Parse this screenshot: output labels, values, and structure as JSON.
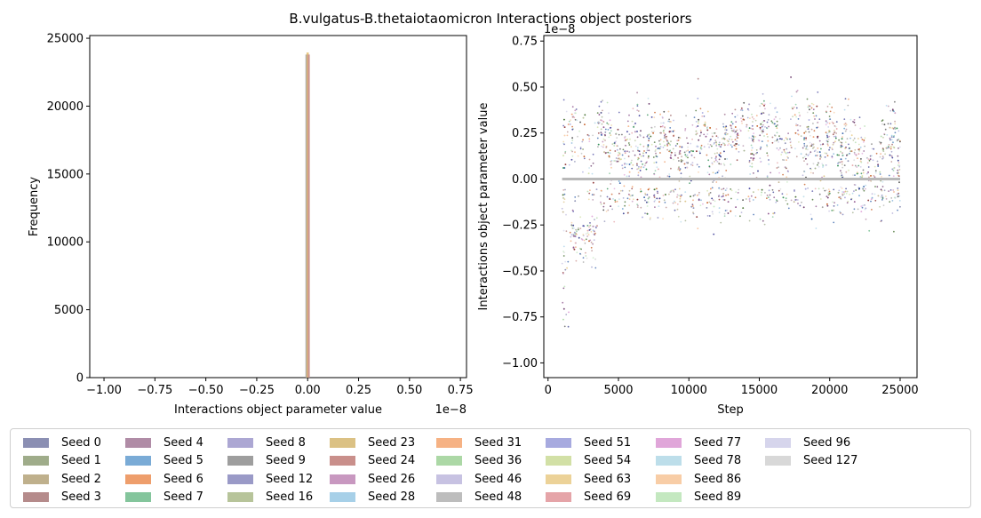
{
  "figure_title": "B.vulgatus-B.thetaiotaomicron Interactions object posteriors",
  "chart_data": [
    {
      "type": "bar",
      "subtype": "histogram",
      "xlabel": "Interactions object parameter value",
      "ylabel": "Frequency",
      "x_offset_label": "1e−8",
      "xlim": [
        -1.07,
        0.78
      ],
      "ylim": [
        0,
        25200
      ],
      "xticks": [
        "−1.00",
        "−0.75",
        "−0.50",
        "−0.25",
        "0.00",
        "0.25",
        "0.50",
        "0.75"
      ],
      "xtick_values": [
        -1.0,
        -0.75,
        -0.5,
        -0.25,
        0.0,
        0.25,
        0.5,
        0.75
      ],
      "yticks": [
        "0",
        "5000",
        "10000",
        "15000",
        "20000",
        "25000"
      ],
      "ytick_values": [
        0,
        5000,
        10000,
        15000,
        20000,
        25000
      ],
      "bins": [
        {
          "x": -0.005,
          "value": 23800,
          "color": "#9b9a9a"
        },
        {
          "x": 0.0,
          "value": 23950,
          "color": "#e5c06f"
        },
        {
          "x": 0.005,
          "value": 23800,
          "color": "#c98f8b"
        }
      ],
      "grid": false
    },
    {
      "type": "scatter",
      "xlabel": "Step",
      "ylabel": "Interactions object parameter value",
      "y_offset_label": "1e−8",
      "xlim": [
        -300,
        26200
      ],
      "ylim": [
        -1.08,
        0.78
      ],
      "xticks": [
        "0",
        "5000",
        "10000",
        "15000",
        "20000",
        "25000"
      ],
      "xtick_values": [
        0,
        5000,
        10000,
        15000,
        20000,
        25000
      ],
      "yticks": [
        "−1.00",
        "−0.75",
        "−0.50",
        "−0.25",
        "0.00",
        "0.25",
        "0.50",
        "0.75"
      ],
      "ytick_values": [
        -1.0,
        -0.75,
        -0.5,
        -0.25,
        0.0,
        0.25,
        0.5,
        0.75
      ],
      "zero_line": {
        "x_range": [
          1000,
          25000
        ],
        "y": 0.0,
        "color": "#b8b8b8"
      },
      "point_count_estimate": 2400,
      "grid": false
    }
  ],
  "legend": {
    "placement": "bottom",
    "columns": 9,
    "items": [
      {
        "label": "Seed 0",
        "color": "#8b8fb3"
      },
      {
        "label": "Seed 1",
        "color": "#9fac8a"
      },
      {
        "label": "Seed 2",
        "color": "#bfb08c"
      },
      {
        "label": "Seed 3",
        "color": "#b58b8b"
      },
      {
        "label": "Seed 4",
        "color": "#b08ca6"
      },
      {
        "label": "Seed 5",
        "color": "#7aabd6"
      },
      {
        "label": "Seed 6",
        "color": "#ee9e6c"
      },
      {
        "label": "Seed 7",
        "color": "#84c59c"
      },
      {
        "label": "Seed 8",
        "color": "#aca7d3"
      },
      {
        "label": "Seed 9",
        "color": "#9e9e9e"
      },
      {
        "label": "Seed 12",
        "color": "#9a9ac7"
      },
      {
        "label": "Seed 16",
        "color": "#b7c49a"
      },
      {
        "label": "Seed 23",
        "color": "#dbc184"
      },
      {
        "label": "Seed 24",
        "color": "#c98f8b"
      },
      {
        "label": "Seed 26",
        "color": "#c898c0"
      },
      {
        "label": "Seed 28",
        "color": "#a7d0e8"
      },
      {
        "label": "Seed 31",
        "color": "#f6b284"
      },
      {
        "label": "Seed 36",
        "color": "#acd8a6"
      },
      {
        "label": "Seed 46",
        "color": "#c7c2e2"
      },
      {
        "label": "Seed 48",
        "color": "#bdbdbd"
      },
      {
        "label": "Seed 51",
        "color": "#a7aadf"
      },
      {
        "label": "Seed 54",
        "color": "#d2e0a6"
      },
      {
        "label": "Seed 63",
        "color": "#ecd298"
      },
      {
        "label": "Seed 69",
        "color": "#e5a4a8"
      },
      {
        "label": "Seed 77",
        "color": "#e0a6d9"
      },
      {
        "label": "Seed 78",
        "color": "#bddeea"
      },
      {
        "label": "Seed 86",
        "color": "#f8cda6"
      },
      {
        "label": "Seed 89",
        "color": "#c4e8c0"
      },
      {
        "label": "Seed 96",
        "color": "#d6d5ec"
      },
      {
        "label": "Seed 127",
        "color": "#d8d8d8"
      }
    ]
  }
}
